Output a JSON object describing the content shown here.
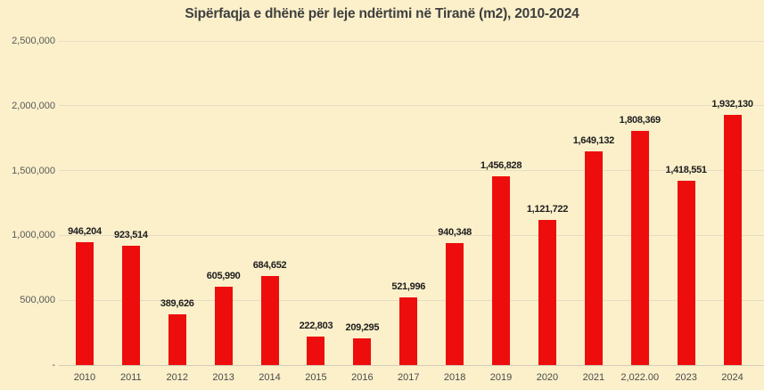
{
  "chart_data": {
    "type": "bar",
    "title": "Sipërfaqja e dhënë për leje ndërtimi në Tiranë (m2), 2010-2024",
    "categories": [
      "2010",
      "2011",
      "2012",
      "2013",
      "2014",
      "2015",
      "2016",
      "2017",
      "2018",
      "2019",
      "2020",
      "2021",
      "2,022.00",
      "2023",
      "2024"
    ],
    "values": [
      946204,
      923514,
      389626,
      605990,
      684652,
      222803,
      209295,
      521996,
      940348,
      1456828,
      1121722,
      1649132,
      1808369,
      1418551,
      1932130
    ],
    "value_labels": [
      "946,204",
      "923,514",
      "389,626",
      "605,990",
      "684,652",
      "222,803",
      "209,295",
      "521,996",
      "940,348",
      "1,456,828",
      "1,121,722",
      "1,649,132",
      "1,808,369",
      "1,418,551",
      "1,932,130"
    ],
    "xlabel": "",
    "ylabel": "",
    "ylim": [
      0,
      2500000
    ],
    "y_ticks": [
      {
        "label": "2,500,000",
        "value": 2500000
      },
      {
        "label": "2,000,000",
        "value": 2000000
      },
      {
        "label": "1,500,000",
        "value": 1500000
      },
      {
        "label": "1,000,000",
        "value": 1000000
      },
      {
        "label": "500,000",
        "value": 500000
      },
      {
        "label": "-",
        "value": 0
      }
    ],
    "grid": true,
    "legend": "none",
    "colors": {
      "bar": "#EE0D0D",
      "background": "#FBF0CA",
      "title_text": "#3F3F3F",
      "axis_text": "#595959",
      "x_axis_text": "#4A4A4A",
      "value_label_text": "#1D1D1D",
      "gridline": "#E6DEC4",
      "baseline": "#D3CDB9"
    }
  }
}
